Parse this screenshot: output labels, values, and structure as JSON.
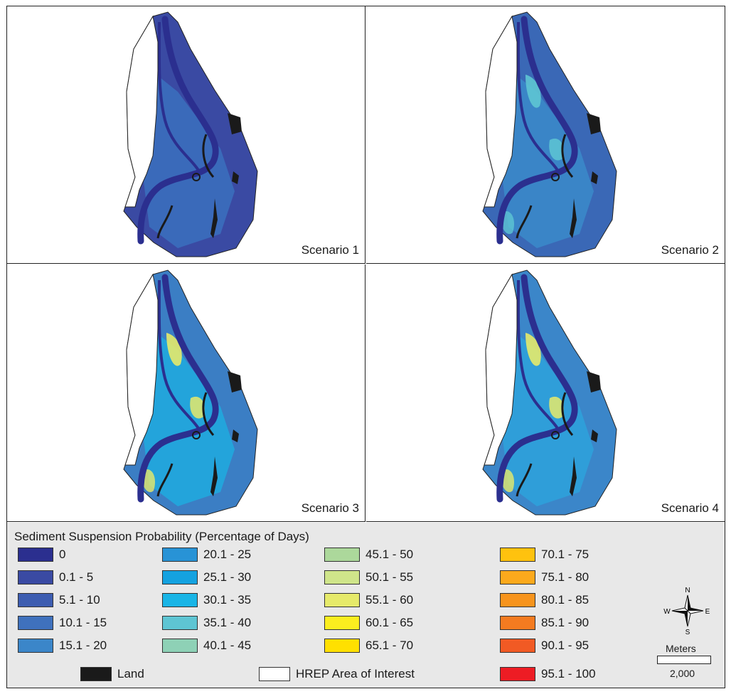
{
  "panels": [
    {
      "label": "Scenario 1",
      "level": 1
    },
    {
      "label": "Scenario 2",
      "level": 2
    },
    {
      "label": "Scenario 3",
      "level": 3
    },
    {
      "label": "Scenario 4",
      "level": 4
    }
  ],
  "legend": {
    "title": "Sediment Suspension Probability (Percentage of Days)",
    "columns": [
      [
        {
          "label": "0",
          "color": "#2b2f8f"
        },
        {
          "label": "0.1 - 5",
          "color": "#3a4aa3"
        },
        {
          "label": "5.1 - 10",
          "color": "#3d5db1"
        },
        {
          "label": "10.1 - 15",
          "color": "#3f71bd"
        },
        {
          "label": "15.1 - 20",
          "color": "#3b86c9"
        }
      ],
      [
        {
          "label": "20.1 - 25",
          "color": "#2893d6"
        },
        {
          "label": "25.1 - 30",
          "color": "#14a2e0"
        },
        {
          "label": "30.1 - 35",
          "color": "#19b5e6"
        },
        {
          "label": "35.1 - 40",
          "color": "#5ec5d3"
        },
        {
          "label": "40.1 - 45",
          "color": "#8ed1b6"
        }
      ],
      [
        {
          "label": "45.1 - 50",
          "color": "#acd89b"
        },
        {
          "label": "50.1 - 55",
          "color": "#cfe58a"
        },
        {
          "label": "55.1 - 60",
          "color": "#e6ea6a"
        },
        {
          "label": "60.1 - 65",
          "color": "#fbee1f"
        },
        {
          "label": "65.1 - 70",
          "color": "#ffe000"
        }
      ],
      [
        {
          "label": "70.1 - 75",
          "color": "#ffc20e"
        },
        {
          "label": "75.1 - 80",
          "color": "#fca91c"
        },
        {
          "label": "80.1 - 85",
          "color": "#f7941d"
        },
        {
          "label": "85.1 - 90",
          "color": "#f47b20"
        },
        {
          "label": "90.1 - 95",
          "color": "#f15a24"
        },
        {
          "label": "95.1 - 100",
          "color": "#ed1c24"
        }
      ]
    ],
    "land": {
      "label": "Land",
      "color": "#1a1a1a"
    },
    "hrep": {
      "label": "HREP Area of Interest",
      "color": "#ffffff"
    }
  },
  "compass": {
    "n": "N",
    "s": "S",
    "e": "E",
    "w": "W"
  },
  "scale": {
    "unit": "Meters",
    "value": "2,000"
  }
}
